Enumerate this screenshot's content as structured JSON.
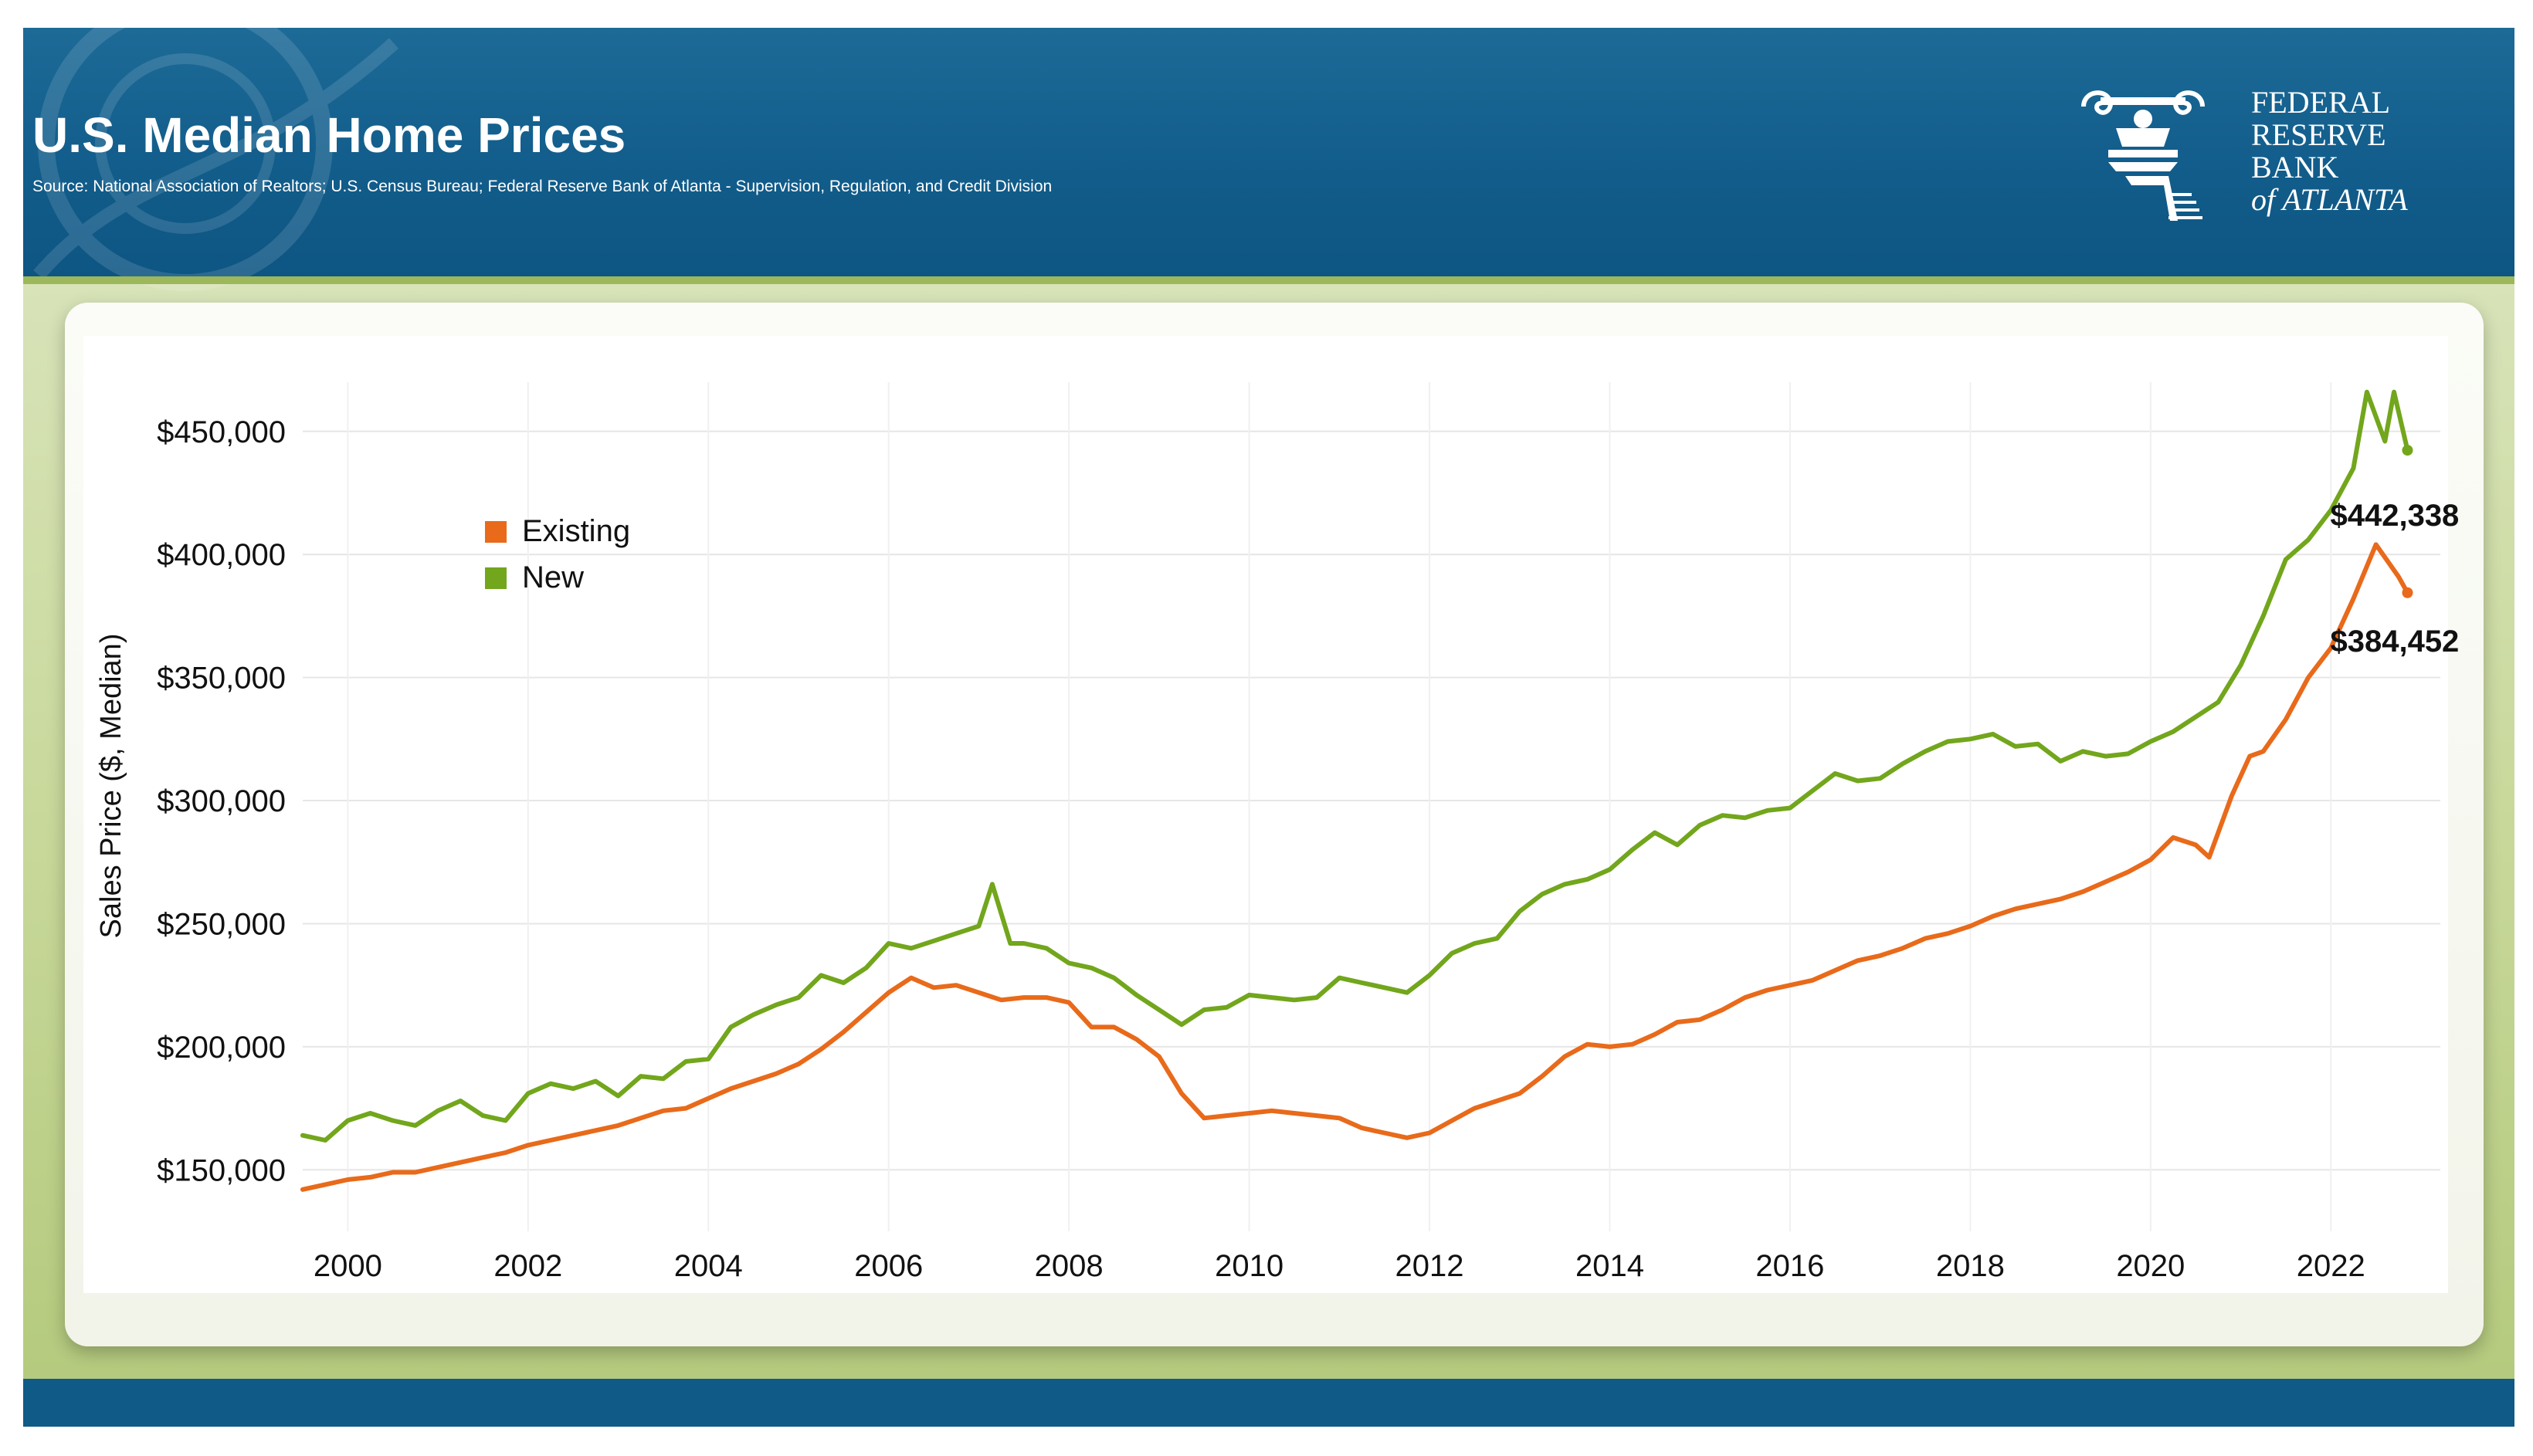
{
  "header": {
    "title": "U.S. Median Home Prices",
    "source": "Source: National Association of Realtors; U.S. Census Bureau; Federal Reserve Bank of Atlanta - Supervision, Regulation, and Credit Division",
    "logo_lines": [
      "FEDERAL",
      "RESERVE",
      "BANK",
      "of ATLANTA"
    ]
  },
  "colors": {
    "header_blue": "#125d8b",
    "existing": "#e86a1a",
    "new": "#72a61c",
    "frame_green": "#c9d99c"
  },
  "chart_data": {
    "type": "line",
    "title": "",
    "xlabel": "",
    "ylabel": "Sales Price ($, Median)",
    "xlim": [
      1999.5,
      2023.3
    ],
    "ylim": [
      125000,
      470000
    ],
    "x_ticks": [
      "2000",
      "2002",
      "2004",
      "2006",
      "2008",
      "2010",
      "2012",
      "2014",
      "2016",
      "2018",
      "2020",
      "2022"
    ],
    "y_ticks": [
      "$150,000",
      "$200,000",
      "$250,000",
      "$300,000",
      "$350,000",
      "$400,000",
      "$450,000"
    ],
    "y_tick_values": [
      150000,
      200000,
      250000,
      300000,
      350000,
      400000,
      450000
    ],
    "grid": true,
    "legend_position": "top-left",
    "series": [
      {
        "name": "Existing",
        "color": "#e86a1a",
        "points": [
          [
            1999.5,
            142000
          ],
          [
            1999.75,
            144000
          ],
          [
            2000.0,
            146000
          ],
          [
            2000.25,
            147000
          ],
          [
            2000.5,
            149000
          ],
          [
            2000.75,
            149000
          ],
          [
            2001.0,
            151000
          ],
          [
            2001.25,
            153000
          ],
          [
            2001.5,
            155000
          ],
          [
            2001.75,
            157000
          ],
          [
            2002.0,
            160000
          ],
          [
            2002.25,
            162000
          ],
          [
            2002.5,
            164000
          ],
          [
            2002.75,
            166000
          ],
          [
            2003.0,
            168000
          ],
          [
            2003.25,
            171000
          ],
          [
            2003.5,
            174000
          ],
          [
            2003.75,
            175000
          ],
          [
            2004.0,
            179000
          ],
          [
            2004.25,
            183000
          ],
          [
            2004.5,
            186000
          ],
          [
            2004.75,
            189000
          ],
          [
            2005.0,
            193000
          ],
          [
            2005.25,
            199000
          ],
          [
            2005.5,
            206000
          ],
          [
            2005.75,
            214000
          ],
          [
            2006.0,
            222000
          ],
          [
            2006.25,
            228000
          ],
          [
            2006.5,
            224000
          ],
          [
            2006.75,
            225000
          ],
          [
            2007.0,
            222000
          ],
          [
            2007.25,
            219000
          ],
          [
            2007.5,
            220000
          ],
          [
            2007.75,
            220000
          ],
          [
            2008.0,
            218000
          ],
          [
            2008.25,
            208000
          ],
          [
            2008.5,
            208000
          ],
          [
            2008.75,
            203000
          ],
          [
            2009.0,
            196000
          ],
          [
            2009.25,
            181000
          ],
          [
            2009.5,
            171000
          ],
          [
            2009.75,
            172000
          ],
          [
            2010.0,
            173000
          ],
          [
            2010.25,
            174000
          ],
          [
            2010.5,
            173000
          ],
          [
            2010.75,
            172000
          ],
          [
            2011.0,
            171000
          ],
          [
            2011.25,
            167000
          ],
          [
            2011.5,
            165000
          ],
          [
            2011.75,
            163000
          ],
          [
            2012.0,
            165000
          ],
          [
            2012.25,
            170000
          ],
          [
            2012.5,
            175000
          ],
          [
            2012.75,
            178000
          ],
          [
            2013.0,
            181000
          ],
          [
            2013.25,
            188000
          ],
          [
            2013.5,
            196000
          ],
          [
            2013.75,
            201000
          ],
          [
            2014.0,
            200000
          ],
          [
            2014.25,
            201000
          ],
          [
            2014.5,
            205000
          ],
          [
            2014.75,
            210000
          ],
          [
            2015.0,
            211000
          ],
          [
            2015.25,
            215000
          ],
          [
            2015.5,
            220000
          ],
          [
            2015.75,
            223000
          ],
          [
            2016.0,
            225000
          ],
          [
            2016.25,
            227000
          ],
          [
            2016.5,
            231000
          ],
          [
            2016.75,
            235000
          ],
          [
            2017.0,
            237000
          ],
          [
            2017.25,
            240000
          ],
          [
            2017.5,
            244000
          ],
          [
            2017.75,
            246000
          ],
          [
            2018.0,
            249000
          ],
          [
            2018.25,
            253000
          ],
          [
            2018.5,
            256000
          ],
          [
            2018.75,
            258000
          ],
          [
            2019.0,
            260000
          ],
          [
            2019.25,
            263000
          ],
          [
            2019.5,
            267000
          ],
          [
            2019.75,
            271000
          ],
          [
            2020.0,
            276000
          ],
          [
            2020.25,
            285000
          ],
          [
            2020.5,
            282000
          ],
          [
            2020.65,
            277000
          ],
          [
            2020.9,
            302000
          ],
          [
            2021.1,
            318000
          ],
          [
            2021.25,
            320000
          ],
          [
            2021.5,
            333000
          ],
          [
            2021.75,
            350000
          ],
          [
            2022.0,
            362000
          ],
          [
            2022.25,
            382000
          ],
          [
            2022.5,
            404000
          ],
          [
            2022.75,
            391000
          ],
          [
            2022.85,
            384452
          ]
        ]
      },
      {
        "name": "New",
        "color": "#72a61c",
        "points": [
          [
            1999.5,
            164000
          ],
          [
            1999.75,
            162000
          ],
          [
            2000.0,
            170000
          ],
          [
            2000.25,
            173000
          ],
          [
            2000.5,
            170000
          ],
          [
            2000.75,
            168000
          ],
          [
            2001.0,
            174000
          ],
          [
            2001.25,
            178000
          ],
          [
            2001.5,
            172000
          ],
          [
            2001.75,
            170000
          ],
          [
            2002.0,
            181000
          ],
          [
            2002.25,
            185000
          ],
          [
            2002.5,
            183000
          ],
          [
            2002.75,
            186000
          ],
          [
            2003.0,
            180000
          ],
          [
            2003.25,
            188000
          ],
          [
            2003.5,
            187000
          ],
          [
            2003.75,
            194000
          ],
          [
            2004.0,
            195000
          ],
          [
            2004.25,
            208000
          ],
          [
            2004.5,
            213000
          ],
          [
            2004.75,
            217000
          ],
          [
            2005.0,
            220000
          ],
          [
            2005.25,
            229000
          ],
          [
            2005.5,
            226000
          ],
          [
            2005.75,
            232000
          ],
          [
            2006.0,
            242000
          ],
          [
            2006.25,
            240000
          ],
          [
            2006.5,
            243000
          ],
          [
            2006.75,
            246000
          ],
          [
            2007.0,
            249000
          ],
          [
            2007.15,
            266000
          ],
          [
            2007.35,
            242000
          ],
          [
            2007.5,
            242000
          ],
          [
            2007.75,
            240000
          ],
          [
            2008.0,
            234000
          ],
          [
            2008.25,
            232000
          ],
          [
            2008.5,
            228000
          ],
          [
            2008.75,
            221000
          ],
          [
            2009.0,
            215000
          ],
          [
            2009.25,
            209000
          ],
          [
            2009.5,
            215000
          ],
          [
            2009.75,
            216000
          ],
          [
            2010.0,
            221000
          ],
          [
            2010.25,
            220000
          ],
          [
            2010.5,
            219000
          ],
          [
            2010.75,
            220000
          ],
          [
            2011.0,
            228000
          ],
          [
            2011.25,
            226000
          ],
          [
            2011.5,
            224000
          ],
          [
            2011.75,
            222000
          ],
          [
            2012.0,
            229000
          ],
          [
            2012.25,
            238000
          ],
          [
            2012.5,
            242000
          ],
          [
            2012.75,
            244000
          ],
          [
            2013.0,
            255000
          ],
          [
            2013.25,
            262000
          ],
          [
            2013.5,
            266000
          ],
          [
            2013.75,
            268000
          ],
          [
            2014.0,
            272000
          ],
          [
            2014.25,
            280000
          ],
          [
            2014.5,
            287000
          ],
          [
            2014.75,
            282000
          ],
          [
            2015.0,
            290000
          ],
          [
            2015.25,
            294000
          ],
          [
            2015.5,
            293000
          ],
          [
            2015.75,
            296000
          ],
          [
            2016.0,
            297000
          ],
          [
            2016.25,
            304000
          ],
          [
            2016.5,
            311000
          ],
          [
            2016.75,
            308000
          ],
          [
            2017.0,
            309000
          ],
          [
            2017.25,
            315000
          ],
          [
            2017.5,
            320000
          ],
          [
            2017.75,
            324000
          ],
          [
            2018.0,
            325000
          ],
          [
            2018.25,
            327000
          ],
          [
            2018.5,
            322000
          ],
          [
            2018.75,
            323000
          ],
          [
            2019.0,
            316000
          ],
          [
            2019.25,
            320000
          ],
          [
            2019.5,
            318000
          ],
          [
            2019.75,
            319000
          ],
          [
            2020.0,
            324000
          ],
          [
            2020.25,
            328000
          ],
          [
            2020.5,
            334000
          ],
          [
            2020.75,
            340000
          ],
          [
            2021.0,
            355000
          ],
          [
            2021.25,
            375000
          ],
          [
            2021.5,
            398000
          ],
          [
            2021.75,
            406000
          ],
          [
            2022.0,
            418000
          ],
          [
            2022.25,
            435000
          ],
          [
            2022.4,
            466000
          ],
          [
            2022.6,
            446000
          ],
          [
            2022.7,
            466000
          ],
          [
            2022.85,
            442338
          ]
        ]
      }
    ],
    "annotations": [
      {
        "text": "$442,338",
        "series": "New",
        "x": 2022.85,
        "y": 442338
      },
      {
        "text": "$384,452",
        "series": "Existing",
        "x": 2022.85,
        "y": 384452
      }
    ]
  }
}
